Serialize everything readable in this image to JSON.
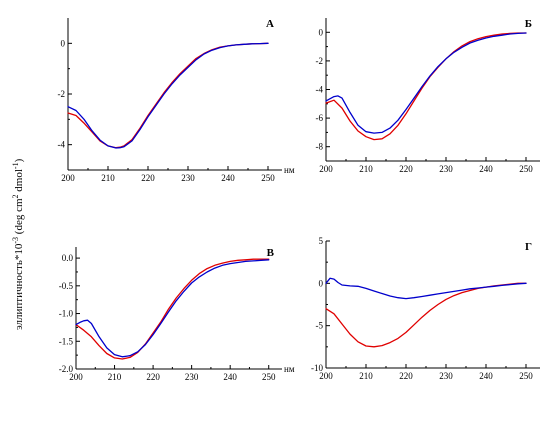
{
  "figure": {
    "ylabel": "эллиптичность*10",
    "ylabel_exp": "-3",
    "ylabel_units": " (deg cm",
    "ylabel_units_exp": "2",
    "ylabel_units_tail": " dmol",
    "ylabel_units_tail_exp": "-1",
    "ylabel_close": ")"
  },
  "colors": {
    "red_series": "#e00000",
    "blue_series": "#0000cc"
  },
  "chart_data": [
    {
      "type": "line",
      "label": "А",
      "xunit": "нм",
      "xlim": [
        200,
        255
      ],
      "ylim": [
        -5,
        1
      ],
      "xticks": [
        200,
        210,
        220,
        230,
        240,
        250
      ],
      "yticks": [
        0,
        -2,
        -4
      ],
      "ytick_labels": [
        "0",
        "-2",
        "-4"
      ],
      "series": [
        {
          "color": "red",
          "x": [
            200,
            202,
            204,
            206,
            208,
            210,
            212,
            213,
            214,
            216,
            218,
            220,
            222,
            224,
            226,
            228,
            230,
            232,
            234,
            236,
            238,
            240,
            242,
            244,
            246,
            248,
            250
          ],
          "y": [
            -2.75,
            -2.85,
            -3.15,
            -3.5,
            -3.85,
            -4.05,
            -4.12,
            -4.1,
            -4.05,
            -3.8,
            -3.35,
            -2.85,
            -2.4,
            -1.95,
            -1.55,
            -1.2,
            -0.9,
            -0.6,
            -0.4,
            -0.25,
            -0.15,
            -0.1,
            -0.06,
            -0.04,
            -0.02,
            -0.01,
            0.0
          ]
        },
        {
          "color": "blue",
          "x": [
            200,
            202,
            204,
            206,
            208,
            210,
            212,
            213,
            214,
            216,
            218,
            220,
            222,
            224,
            226,
            228,
            230,
            232,
            234,
            236,
            238,
            240,
            242,
            244,
            246,
            248,
            250
          ],
          "y": [
            -2.5,
            -2.65,
            -3.0,
            -3.45,
            -3.82,
            -4.05,
            -4.13,
            -4.12,
            -4.08,
            -3.85,
            -3.4,
            -2.9,
            -2.45,
            -2.0,
            -1.6,
            -1.25,
            -0.95,
            -0.65,
            -0.42,
            -0.27,
            -0.17,
            -0.1,
            -0.06,
            -0.04,
            -0.02,
            -0.01,
            0.0
          ]
        }
      ]
    },
    {
      "type": "line",
      "label": "Б",
      "xunit": "нм",
      "xlim": [
        200,
        255
      ],
      "ylim": [
        -9,
        1
      ],
      "xticks": [
        200,
        210,
        220,
        230,
        240,
        250
      ],
      "yticks": [
        0,
        -2,
        -4,
        -6,
        -8
      ],
      "ytick_labels": [
        "0",
        "-2",
        "-4",
        "-6",
        "-8"
      ],
      "series": [
        {
          "color": "red",
          "x": [
            200,
            202,
            204,
            206,
            208,
            210,
            212,
            214,
            216,
            218,
            220,
            222,
            224,
            226,
            228,
            230,
            232,
            234,
            236,
            238,
            240,
            242,
            244,
            246,
            248,
            250
          ],
          "y": [
            -4.95,
            -4.75,
            -5.3,
            -6.2,
            -6.9,
            -7.3,
            -7.5,
            -7.45,
            -7.1,
            -6.5,
            -5.7,
            -4.8,
            -3.9,
            -3.1,
            -2.45,
            -1.85,
            -1.35,
            -0.95,
            -0.65,
            -0.45,
            -0.3,
            -0.2,
            -0.12,
            -0.08,
            -0.05,
            -0.05
          ]
        },
        {
          "color": "blue",
          "x": [
            200,
            202,
            203,
            204,
            206,
            208,
            210,
            212,
            214,
            216,
            218,
            220,
            222,
            224,
            226,
            228,
            230,
            232,
            234,
            236,
            238,
            240,
            242,
            244,
            246,
            248,
            250
          ],
          "y": [
            -4.8,
            -4.5,
            -4.45,
            -4.6,
            -5.6,
            -6.5,
            -6.95,
            -7.05,
            -7.0,
            -6.7,
            -6.15,
            -5.4,
            -4.6,
            -3.8,
            -3.05,
            -2.4,
            -1.85,
            -1.4,
            -1.05,
            -0.75,
            -0.55,
            -0.4,
            -0.28,
            -0.2,
            -0.12,
            -0.08,
            -0.05
          ]
        }
      ]
    },
    {
      "type": "line",
      "label": "В",
      "xunit": "нм",
      "xlim": [
        200,
        255
      ],
      "ylim": [
        -2.0,
        0.2
      ],
      "xticks": [
        200,
        210,
        220,
        230,
        240,
        250
      ],
      "yticks": [
        0,
        -0.5,
        -1.0,
        -1.5,
        -2.0
      ],
      "ytick_labels": [
        "0.0",
        "-0.5",
        "-1.0",
        "-1.5",
        "-2.0"
      ],
      "series": [
        {
          "color": "red",
          "x": [
            200,
            202,
            204,
            206,
            208,
            210,
            212,
            214,
            216,
            218,
            220,
            222,
            224,
            226,
            228,
            230,
            232,
            234,
            236,
            238,
            240,
            242,
            244,
            246,
            248,
            250
          ],
          "y": [
            -1.2,
            -1.3,
            -1.42,
            -1.58,
            -1.72,
            -1.8,
            -1.82,
            -1.79,
            -1.7,
            -1.55,
            -1.35,
            -1.15,
            -0.92,
            -0.72,
            -0.55,
            -0.4,
            -0.28,
            -0.19,
            -0.13,
            -0.09,
            -0.06,
            -0.04,
            -0.03,
            -0.02,
            -0.02,
            -0.02
          ]
        },
        {
          "color": "blue",
          "x": [
            200,
            201,
            202,
            203,
            204,
            206,
            208,
            210,
            212,
            214,
            216,
            218,
            220,
            222,
            224,
            226,
            228,
            230,
            232,
            234,
            236,
            238,
            240,
            242,
            244,
            246,
            248,
            250
          ],
          "y": [
            -1.2,
            -1.16,
            -1.13,
            -1.12,
            -1.18,
            -1.42,
            -1.62,
            -1.74,
            -1.78,
            -1.76,
            -1.69,
            -1.56,
            -1.38,
            -1.18,
            -0.97,
            -0.77,
            -0.6,
            -0.45,
            -0.34,
            -0.25,
            -0.18,
            -0.13,
            -0.1,
            -0.08,
            -0.06,
            -0.05,
            -0.04,
            -0.03
          ]
        }
      ]
    },
    {
      "type": "line",
      "label": "Г",
      "xunit": "нм",
      "xlim": [
        200,
        255
      ],
      "ylim": [
        -10,
        5
      ],
      "xticks": [
        200,
        210,
        220,
        230,
        240,
        250
      ],
      "yticks": [
        5,
        0,
        -5,
        -10
      ],
      "ytick_labels": [
        "5",
        "0",
        "-5",
        "-10"
      ],
      "series": [
        {
          "color": "red",
          "x": [
            200,
            202,
            204,
            206,
            208,
            210,
            212,
            214,
            216,
            218,
            220,
            222,
            224,
            226,
            228,
            230,
            232,
            234,
            236,
            238,
            240,
            242,
            244,
            246,
            248,
            250
          ],
          "y": [
            -3.0,
            -3.6,
            -4.8,
            -6.0,
            -6.9,
            -7.4,
            -7.5,
            -7.35,
            -7.0,
            -6.5,
            -5.8,
            -4.9,
            -4.0,
            -3.2,
            -2.5,
            -1.9,
            -1.45,
            -1.1,
            -0.85,
            -0.6,
            -0.45,
            -0.3,
            -0.2,
            -0.1,
            0.0,
            0.0
          ]
        },
        {
          "color": "blue",
          "x": [
            200,
            201,
            202,
            203,
            204,
            206,
            208,
            210,
            212,
            214,
            216,
            218,
            220,
            222,
            224,
            226,
            228,
            230,
            232,
            234,
            236,
            238,
            240,
            242,
            244,
            246,
            248,
            250
          ],
          "y": [
            0.0,
            0.6,
            0.5,
            0.1,
            -0.2,
            -0.3,
            -0.35,
            -0.6,
            -0.9,
            -1.2,
            -1.5,
            -1.7,
            -1.8,
            -1.7,
            -1.55,
            -1.4,
            -1.25,
            -1.1,
            -0.95,
            -0.8,
            -0.65,
            -0.55,
            -0.45,
            -0.35,
            -0.25,
            -0.15,
            -0.05,
            0.0
          ]
        }
      ]
    }
  ]
}
